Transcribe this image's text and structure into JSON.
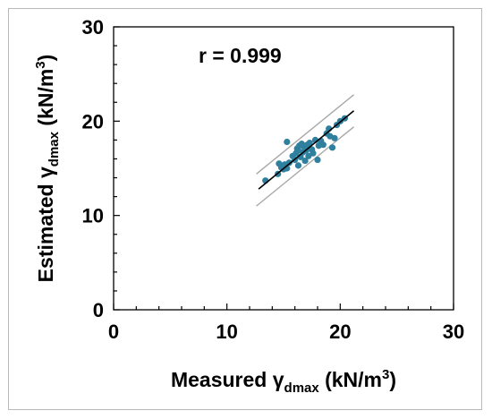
{
  "chart_data": {
    "type": "scatter",
    "xlabel": {
      "prefix": "Measured ",
      "symbol": "γ",
      "subscript": "dmax",
      "unit": " (kN/m",
      "sup": "3",
      "close": ")"
    },
    "ylabel": {
      "prefix": "Estimated ",
      "symbol": "γ",
      "subscript": "dmax",
      "unit": " (kN/m",
      "sup": "3",
      "close": ")"
    },
    "annotation": "r = 0.999",
    "xlim": [
      0,
      30
    ],
    "ylim": [
      0,
      30
    ],
    "xticks": [
      "0",
      "10",
      "20",
      "30"
    ],
    "yticks": [
      "0",
      "10",
      "20",
      "30"
    ],
    "grid": false,
    "colors": {
      "points": "#2f7f9e",
      "fit_line": "#000000",
      "band": "#a8a8a8"
    },
    "fit_line": {
      "x": [
        12.8,
        21.2
      ],
      "y": [
        12.8,
        21.1
      ]
    },
    "upper_band": {
      "x": [
        12.6,
        21.2
      ],
      "y": [
        14.4,
        22.8
      ]
    },
    "lower_band": {
      "x": [
        12.6,
        21.2
      ],
      "y": [
        11.0,
        19.4
      ]
    },
    "points": [
      {
        "x": 13.4,
        "y": 13.7
      },
      {
        "x": 14.5,
        "y": 14.4
      },
      {
        "x": 14.6,
        "y": 15.5
      },
      {
        "x": 14.8,
        "y": 15.1
      },
      {
        "x": 15.0,
        "y": 14.9
      },
      {
        "x": 15.1,
        "y": 15.4
      },
      {
        "x": 15.3,
        "y": 15.0
      },
      {
        "x": 15.5,
        "y": 15.6
      },
      {
        "x": 15.3,
        "y": 17.8
      },
      {
        "x": 15.8,
        "y": 16.3
      },
      {
        "x": 16.0,
        "y": 15.9
      },
      {
        "x": 16.1,
        "y": 16.6
      },
      {
        "x": 16.2,
        "y": 17.1
      },
      {
        "x": 16.3,
        "y": 15.3
      },
      {
        "x": 16.3,
        "y": 16.9
      },
      {
        "x": 16.4,
        "y": 17.4
      },
      {
        "x": 16.5,
        "y": 16.2
      },
      {
        "x": 16.6,
        "y": 17.6
      },
      {
        "x": 16.7,
        "y": 16.7
      },
      {
        "x": 16.8,
        "y": 17.3
      },
      {
        "x": 16.9,
        "y": 15.8
      },
      {
        "x": 17.0,
        "y": 16.9
      },
      {
        "x": 17.1,
        "y": 17.5
      },
      {
        "x": 17.2,
        "y": 16.3
      },
      {
        "x": 17.3,
        "y": 17.7
      },
      {
        "x": 17.5,
        "y": 17.0
      },
      {
        "x": 17.6,
        "y": 16.6
      },
      {
        "x": 17.8,
        "y": 18.0
      },
      {
        "x": 18.0,
        "y": 15.9
      },
      {
        "x": 18.1,
        "y": 17.4
      },
      {
        "x": 18.3,
        "y": 17.9
      },
      {
        "x": 18.5,
        "y": 17.5
      },
      {
        "x": 18.8,
        "y": 18.7
      },
      {
        "x": 19.0,
        "y": 19.2
      },
      {
        "x": 19.1,
        "y": 18.4
      },
      {
        "x": 19.3,
        "y": 17.2
      },
      {
        "x": 19.5,
        "y": 18.2
      },
      {
        "x": 19.7,
        "y": 19.6
      },
      {
        "x": 20.0,
        "y": 20.0
      },
      {
        "x": 20.4,
        "y": 20.3
      }
    ]
  }
}
